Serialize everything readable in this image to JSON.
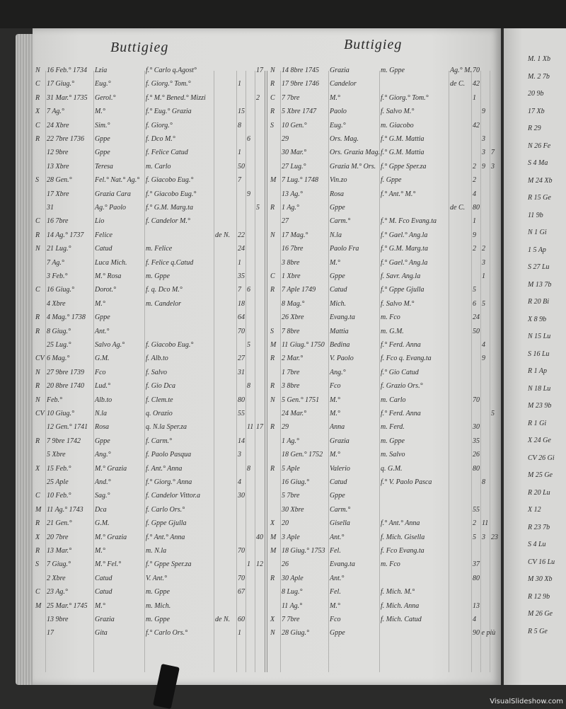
{
  "left_page": {
    "title": "Buttigieg",
    "rows": [
      [
        "N",
        "16 Feb.° 1734",
        "Lzia",
        "f.° Carlo q.Agost°",
        "",
        "",
        "",
        "17"
      ],
      [
        "C",
        "17 Giug.°",
        "Eug.°",
        "f. Giorg.° Tom.°",
        "",
        "1",
        "",
        ""
      ],
      [
        "R",
        "31 Mar.° 1735",
        "Gerol.°",
        "f.° M.° Bened.° Mizzi",
        "",
        "",
        "",
        "2"
      ],
      [
        "X",
        "7 Ag.°",
        "M.°",
        "f.° Eug.° Grazia",
        "",
        "15",
        "",
        ""
      ],
      [
        "C",
        "24 Xbre",
        "Sim.°",
        "f. Giorg.°",
        "",
        "8",
        "",
        ""
      ],
      [
        "R",
        "22 7bre 1736",
        "Gppe",
        "f. Dco  M.°",
        "",
        "",
        "6",
        ""
      ],
      [
        "",
        "12 9bre",
        "Gppe",
        "f. Felice Catud",
        "",
        "1",
        "",
        ""
      ],
      [
        "",
        "13 Xbre",
        "Teresa",
        "m. Carlo",
        "",
        "50",
        "",
        ""
      ],
      [
        "S",
        "28 Gen.°",
        "Fel.° Nat.° Ag.°",
        "f. Giacobo Eug.°",
        "",
        "7",
        "",
        ""
      ],
      [
        "",
        "17 Xbre",
        "Grazia Cara",
        "f.° Giacobo Eug.°",
        "",
        "",
        "9",
        ""
      ],
      [
        "",
        "31",
        "Ag.° Paolo",
        "f.° G.M. Marg.ta",
        "",
        "",
        "",
        "5"
      ],
      [
        "C",
        "16 7bre",
        "Lio",
        "f. Candelor M.°",
        "",
        "",
        "",
        ""
      ],
      [
        "R",
        "14 Ag.° 1737",
        "Felice",
        "",
        "de N.",
        "22",
        "",
        ""
      ],
      [
        "N",
        "21 Lug.°",
        "Catud",
        "m. Felice",
        "",
        "24",
        "",
        ""
      ],
      [
        "",
        "7 Ag.°",
        "Luca Mich.",
        "f. Felice q.Catud",
        "",
        "1",
        "",
        ""
      ],
      [
        "",
        "3 Feb.°",
        "M.° Rosa",
        "m. Gppe",
        "",
        "35",
        "",
        ""
      ],
      [
        "C",
        "16 Giug.°",
        "Dorot.°",
        "f. q. Dco  M.°",
        "",
        "7",
        "6",
        ""
      ],
      [
        "",
        "4 Xbre",
        "M.°",
        "m. Candelor",
        "",
        "18",
        "",
        ""
      ],
      [
        "R",
        "4 Mag.° 1738",
        "Gppe",
        "",
        "",
        "64",
        "",
        ""
      ],
      [
        "R",
        "8 Giug.°",
        "Ant.°",
        "",
        "",
        "70",
        "",
        ""
      ],
      [
        "",
        "25 Lug.°",
        "Salvo Ag.°",
        "f. Giacobo Eug.°",
        "",
        "",
        "5",
        ""
      ],
      [
        "CV",
        "6 Mag.°",
        "G.M.",
        "f. Alb.to",
        "",
        "27",
        "",
        ""
      ],
      [
        "N",
        "27 9bre 1739",
        "Fco",
        "f. Salvo",
        "",
        "31",
        "",
        ""
      ],
      [
        "R",
        "20 8bre 1740",
        "Lud.°",
        "f. Gio  Dca",
        "",
        "",
        "8",
        ""
      ],
      [
        "N",
        "Feb.°",
        "Alb.to",
        "f. Clem.te",
        "",
        "80",
        "",
        ""
      ],
      [
        "CV",
        "10 Giug.°",
        "N.la",
        "q. Orazio",
        "",
        "55",
        "",
        ""
      ],
      [
        "",
        "12 Gen.° 1741",
        "Rosa",
        "q. N.la  Sper.za",
        "",
        "",
        "11",
        "17"
      ],
      [
        "R",
        "7 9bre 1742",
        "Gppe",
        "f. Carm.°",
        "",
        "14",
        "",
        ""
      ],
      [
        "",
        "5 Xbre",
        "Ang.°",
        "f. Paolo Pasqua",
        "",
        "3",
        "",
        ""
      ],
      [
        "X",
        "15 Feb.°",
        "M.° Grazia",
        "f. Ant.° Anna",
        "",
        "",
        "8",
        ""
      ],
      [
        "",
        "25 Aple",
        "And.°",
        "f.° Giorg.° Anna",
        "",
        "4",
        "",
        ""
      ],
      [
        "C",
        "10 Feb.°",
        "Sag.°",
        "f. Candelor Vittor.a",
        "",
        "30",
        "",
        ""
      ],
      [
        "M",
        "11 Ag.° 1743",
        "Dca",
        "f. Carlo Ors.°",
        "",
        "",
        "",
        ""
      ],
      [
        "R",
        "21 Gen.°",
        "G.M.",
        "f. Gppe Gjulla",
        "",
        "",
        "",
        ""
      ],
      [
        "X",
        "20 7bre",
        "M.° Grazia",
        "f.° Ant.° Anna",
        "",
        "",
        "",
        "40"
      ],
      [
        "R",
        "13 Mar.°",
        "M.°",
        "m. N.la",
        "",
        "70",
        "",
        ""
      ],
      [
        "S",
        "7 Giug.°",
        "M.° Fel.°",
        "f.° Gppe Sper.za",
        "",
        "",
        "1",
        "12"
      ],
      [
        "",
        "2 Xbre",
        "Catud",
        "V. Ant.°",
        "",
        "70",
        "",
        ""
      ],
      [
        "C",
        "23 Ag.°",
        "Catud",
        "m. Gppe",
        "",
        "67",
        "",
        ""
      ],
      [
        "M",
        "25 Mar.° 1745",
        "M.°",
        "m. Mich.",
        "",
        "",
        "",
        ""
      ],
      [
        "",
        "13 9bre",
        "Grazia",
        "m. Gppe",
        "de N.",
        "60",
        "",
        ""
      ],
      [
        "",
        "17",
        "Gita",
        "f.° Carlo Ors.°",
        "",
        "1",
        "",
        ""
      ]
    ]
  },
  "right_page": {
    "title": "Buttigieg",
    "rows": [
      [
        "N",
        "14 8bre 1745",
        "Grazia",
        "m. Gppe",
        "Ag.° M.",
        "70",
        "",
        ""
      ],
      [
        "R",
        "17 9bre 1746",
        "Candelor",
        "",
        "de C.",
        "42",
        "",
        ""
      ],
      [
        "C",
        "7 7bre",
        "M.°",
        "f.° Giorg.° Tom.°",
        "",
        "1",
        "",
        ""
      ],
      [
        "R",
        "5 Xbre 1747",
        "Paolo",
        "f. Salvo M.°",
        "",
        "",
        "9",
        ""
      ],
      [
        "S",
        "10 Gen.°",
        "Eug.°",
        "m. Giacobo",
        "",
        "42",
        "",
        ""
      ],
      [
        "",
        "29",
        "Ors. Mag.",
        "f.° G.M. Mattia",
        "",
        "",
        "3",
        ""
      ],
      [
        "",
        "30 Mar.°",
        "Ors. Grazia Mag.",
        "f.° G.M. Mattia",
        "",
        "",
        "3",
        "7"
      ],
      [
        "",
        "27 Lug.°",
        "Grazia M.° Ors.",
        "f.° Gppe Sper.za",
        "",
        "2",
        "9",
        "3"
      ],
      [
        "M",
        "7 Lug.° 1748",
        "Vin.zo",
        "f. Gppe",
        "",
        "2",
        "",
        ""
      ],
      [
        "",
        "13 Ag.°",
        "Rosa",
        "f.° Ant.° M.°",
        "",
        "4",
        "",
        ""
      ],
      [
        "R",
        "1 Ag.°",
        "Gppe",
        "",
        "de C.",
        "80",
        "",
        ""
      ],
      [
        "",
        "27",
        "Carm.°",
        "f.° M. Fco Evang.ta",
        "",
        "1",
        "",
        ""
      ],
      [
        "N",
        "17 Mag.°",
        "N.la",
        "f.° Gael.° Ang.la",
        "",
        "9",
        "",
        ""
      ],
      [
        "",
        "16 7bre",
        "Paolo Fra",
        "f.° G.M. Marg.ta",
        "",
        "2",
        "2",
        ""
      ],
      [
        "",
        "3 8bre",
        "M.°",
        "f.° Gael.° Ang.la",
        "",
        "",
        "3",
        ""
      ],
      [
        "C",
        "1 Xbre",
        "Gppe",
        "f. Savr. Ang.la",
        "",
        "",
        "1",
        ""
      ],
      [
        "R",
        "7 Aple 1749",
        "Catud",
        "f.° Gppe Gjulla",
        "",
        "5",
        "",
        ""
      ],
      [
        "",
        "8 Mag.°",
        "Mich.",
        "f. Salvo M.°",
        "",
        "6",
        "5",
        ""
      ],
      [
        "",
        "26 Xbre",
        "Evang.ta",
        "m. Fco",
        "",
        "24",
        "",
        ""
      ],
      [
        "S",
        "7 8bre",
        "Mattia",
        "m. G.M.",
        "",
        "50",
        "",
        ""
      ],
      [
        "M",
        "11 Giug.° 1750",
        "Bedina",
        "f.° Ferd. Anna",
        "",
        "",
        "4",
        ""
      ],
      [
        "R",
        "2 Mar.°",
        "V. Paolo",
        "f. Fco q. Evang.ta",
        "",
        "",
        "9",
        ""
      ],
      [
        "",
        "1 7bre",
        "Ang.°",
        "f.° Gio Catud",
        "",
        "",
        "",
        ""
      ],
      [
        "R",
        "3 8bre",
        "Fco",
        "f. Grazio Ors.°",
        "",
        "",
        "",
        ""
      ],
      [
        "N",
        "5 Gen.° 1751",
        "M.°",
        "m. Carlo",
        "",
        "70",
        "",
        ""
      ],
      [
        "",
        "24 Mar.°",
        "M.°",
        "f.° Ferd. Anna",
        "",
        "",
        "",
        "5"
      ],
      [
        "R",
        "29",
        "Anna",
        "m. Ferd.",
        "",
        "30",
        "",
        ""
      ],
      [
        "",
        "1 Ag.°",
        "Grazia",
        "m. Gppe",
        "",
        "35",
        "",
        ""
      ],
      [
        "",
        "18 Gen.° 1752",
        "M.°",
        "m. Salvo",
        "",
        "26",
        "",
        ""
      ],
      [
        "R",
        "5 Aple",
        "Valerio",
        "q. G.M.",
        "",
        "80",
        "",
        ""
      ],
      [
        "",
        "16 Giug.°",
        "Catud",
        "f.° V. Paolo Pasca",
        "",
        "",
        "8",
        ""
      ],
      [
        "",
        "5 7bre",
        "Gppe",
        "",
        "",
        "",
        "",
        ""
      ],
      [
        "",
        "30 Xbre",
        "Carm.°",
        "",
        "",
        "55",
        "",
        ""
      ],
      [
        "X",
        "20",
        "Gisella",
        "f.° Ant.° Anna",
        "",
        "2",
        "11",
        ""
      ],
      [
        "M",
        "3 Aple",
        "Ant.°",
        "f. Mich. Gisella",
        "",
        "5",
        "3",
        "23"
      ],
      [
        "M",
        "18 Giug.° 1753",
        "Fel.",
        "f. Fco Evang.ta",
        "",
        "",
        "",
        ""
      ],
      [
        "",
        "26",
        "Evang.ta",
        "m. Fco",
        "",
        "37",
        "",
        ""
      ],
      [
        "R",
        "30 Aple",
        "Ant.°",
        "",
        "",
        "80",
        "",
        ""
      ],
      [
        "",
        "8 Lug.°",
        "Fel.",
        "f. Mich. M.°",
        "",
        "",
        "",
        ""
      ],
      [
        "",
        "11 Ag.°",
        "M.°",
        "f. Mich. Anna",
        "",
        "13",
        "",
        ""
      ],
      [
        "X",
        "7 7bre",
        "Fco",
        "f. Mich. Catud",
        "",
        "4",
        "",
        ""
      ],
      [
        "N",
        "28 Giug.°",
        "Gppe",
        "",
        "",
        "90 e più",
        "",
        ""
      ]
    ]
  },
  "next_page_fragment": [
    "M.  1 Xb",
    "M.  2 7b",
    "20 9b",
    "17 Xb",
    "R  29",
    "N  26 Fe",
    "S  4 Ma",
    "M  24 Xb",
    "R  15 Ge",
    "11 9b",
    "N  1 Gi",
    "1 5 Ap",
    "S  27 Lu",
    "M  13 7b",
    "R  20 Bi",
    "X  8 9b",
    "N  15 Lu",
    "S  16 Lu",
    "R  1 Ap",
    "N  18 Lu",
    "M  23 9b",
    "R  1 Gi",
    "X  24 Ge",
    "CV  26 Gi",
    "M  25 Ge",
    "R  20 Lu",
    "X  12",
    "R  23 7b",
    "S  4 Lu",
    "CV  16 Lu",
    "M  30 Xb",
    "R  12 9b",
    "M  26 Ge",
    "R  5 Ge"
  ],
  "watermark": "VisualSlideshow.com"
}
